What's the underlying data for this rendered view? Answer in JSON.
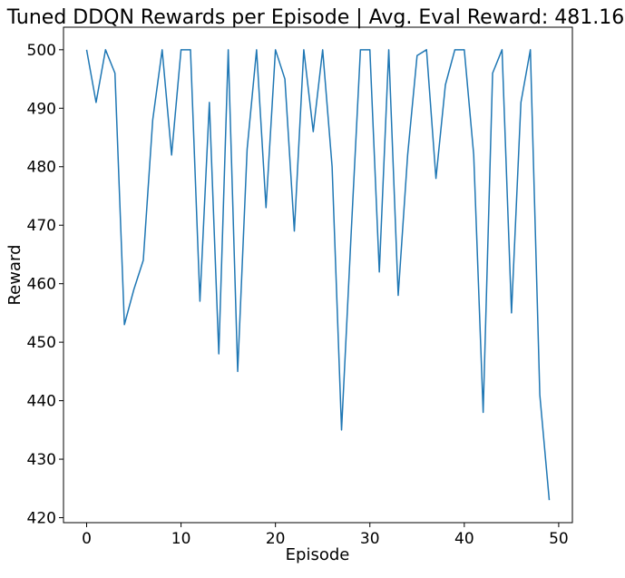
{
  "chart_data": {
    "type": "line",
    "title": "Tuned DDQN Rewards per Episode | Avg. Eval Reward: 481.16",
    "xlabel": "Episode",
    "ylabel": "Reward",
    "xlim": [
      -2.45,
      51.45
    ],
    "ylim": [
      419.15,
      503.85
    ],
    "xticks": [
      0,
      10,
      20,
      30,
      40,
      50
    ],
    "yticks": [
      420,
      430,
      440,
      450,
      460,
      470,
      480,
      490,
      500
    ],
    "grid": false,
    "series": [
      {
        "color": "#1f77b4",
        "x": [
          0,
          1,
          2,
          3,
          4,
          5,
          6,
          7,
          8,
          9,
          10,
          11,
          12,
          13,
          14,
          15,
          16,
          17,
          18,
          19,
          20,
          21,
          22,
          23,
          24,
          25,
          26,
          27,
          28,
          29,
          30,
          31,
          32,
          33,
          34,
          35,
          36,
          37,
          38,
          39,
          40,
          41,
          42,
          43,
          44,
          45,
          46,
          47,
          48,
          49
        ],
        "values": [
          500,
          491,
          500,
          496,
          453,
          459,
          464,
          488,
          500,
          482,
          500,
          500,
          457,
          491,
          448,
          500,
          445,
          483,
          500,
          473,
          500,
          495,
          469,
          500,
          486,
          500,
          480,
          435,
          468,
          500,
          500,
          462,
          500,
          458,
          482,
          499,
          500,
          478,
          494,
          500,
          500,
          482,
          438,
          496,
          500,
          455,
          491,
          500,
          441,
          423
        ]
      }
    ]
  }
}
